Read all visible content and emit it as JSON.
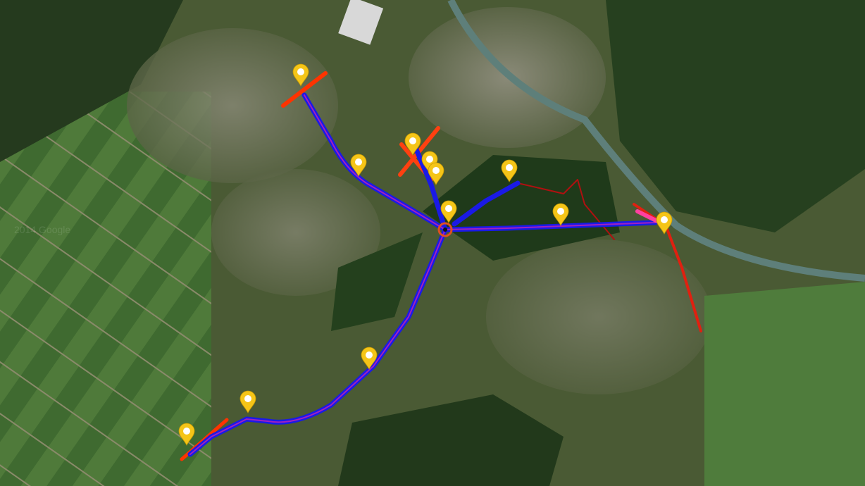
{
  "map": {
    "view": "satellite",
    "watermark": "2014 Google",
    "colors": {
      "route": "#1a1ae6",
      "route_overlay": "#a020c0",
      "hot": "#ff3300",
      "trail": "#b01010",
      "marker": "#f5c518"
    },
    "marker_count": 12
  }
}
